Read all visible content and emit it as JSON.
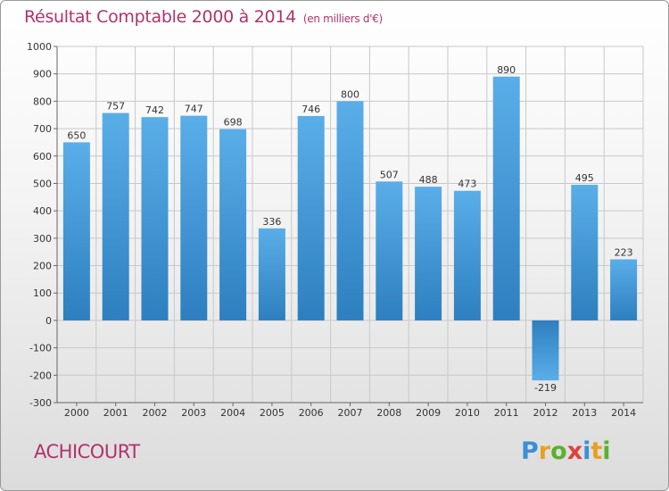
{
  "title": "Résultat Comptable 2000 à 2014",
  "subtitle": "(en milliers d'€)",
  "commune": "ACHICOURT",
  "brand": {
    "letters": [
      "P",
      "r",
      "o",
      "x",
      "i",
      "t",
      "i"
    ],
    "colors": [
      "#3a8fd8",
      "#e8a020",
      "#5ab030",
      "#e04040",
      "#3a8fd8",
      "#e8a020",
      "#5ab030"
    ]
  },
  "colors": {
    "title": "#b0336c",
    "bar_light": "#5aaee8",
    "bar_dark": "#2d7fbf",
    "grid": "#c8c8c8"
  },
  "chart_data": {
    "type": "bar",
    "title": "Résultat Comptable 2000 à 2014",
    "ylabel": "en milliers d'€",
    "categories": [
      "2000",
      "2001",
      "2002",
      "2003",
      "2004",
      "2005",
      "2006",
      "2007",
      "2008",
      "2009",
      "2010",
      "2011",
      "2012",
      "2013",
      "2014"
    ],
    "values": [
      650,
      757,
      742,
      747,
      698,
      336,
      746,
      800,
      507,
      488,
      473,
      890,
      -219,
      495,
      223
    ],
    "ylim": [
      -300,
      1000
    ],
    "yticks": [
      -300,
      -200,
      -100,
      0,
      100,
      200,
      300,
      400,
      500,
      600,
      700,
      800,
      900,
      1000
    ],
    "grid": true
  }
}
